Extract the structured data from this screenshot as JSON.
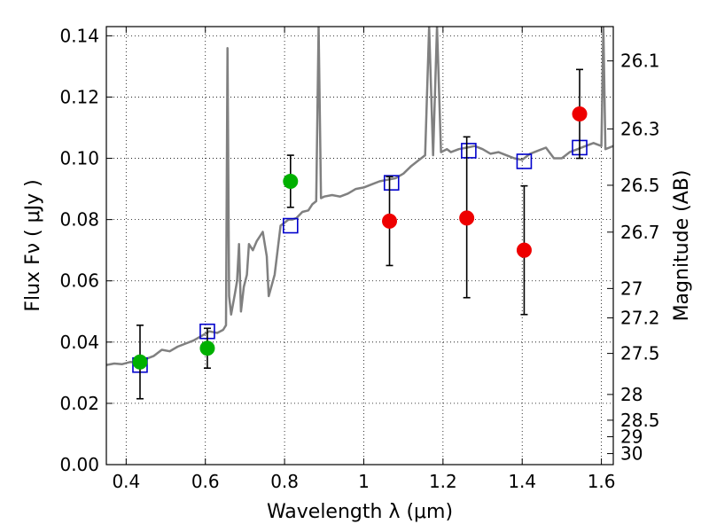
{
  "chart_data": {
    "type": "scatter",
    "xlabel": "Wavelength  λ (μm)",
    "ylabel": "Flux  Fν  ( μJy )",
    "ylabel_right": "Magnitude (AB)",
    "xlim": [
      0.35,
      1.63
    ],
    "ylim": [
      0.0,
      0.143
    ],
    "grid": true,
    "x_ticks": [
      0.4,
      0.6,
      0.8,
      1.0,
      1.2,
      1.4,
      1.6
    ],
    "x_tick_labels": [
      "0.4",
      "0.6",
      "0.8",
      "1",
      "1.2",
      "1.4",
      "1.6"
    ],
    "y_ticks": [
      0.0,
      0.02,
      0.04,
      0.06,
      0.08,
      0.1,
      0.12,
      0.14
    ],
    "y_tick_labels": [
      "0.00",
      "0.02",
      "0.04",
      "0.06",
      "0.08",
      "0.10",
      "0.12",
      "0.14"
    ],
    "right_ticks": [
      {
        "label": "26.1",
        "flux": 0.1318
      },
      {
        "label": "26.3",
        "flux": 0.1096
      },
      {
        "label": "26.5",
        "flux": 0.0912
      },
      {
        "label": "26.7",
        "flux": 0.0759
      },
      {
        "label": "27",
        "flux": 0.0575
      },
      {
        "label": "27.2",
        "flux": 0.0479
      },
      {
        "label": "27.5",
        "flux": 0.0363
      },
      {
        "label": "28",
        "flux": 0.0229
      },
      {
        "label": "28.5",
        "flux": 0.0145
      },
      {
        "label": "29",
        "flux": 0.0091
      },
      {
        "label": "30",
        "flux": 0.0036
      }
    ],
    "series": [
      {
        "kind": "line",
        "color": "#808080",
        "points": [
          [
            0.35,
            0.0325
          ],
          [
            0.37,
            0.033
          ],
          [
            0.39,
            0.0328
          ],
          [
            0.41,
            0.0335
          ],
          [
            0.43,
            0.0333
          ],
          [
            0.45,
            0.0345
          ],
          [
            0.47,
            0.0355
          ],
          [
            0.49,
            0.0375
          ],
          [
            0.51,
            0.037
          ],
          [
            0.53,
            0.0385
          ],
          [
            0.55,
            0.0395
          ],
          [
            0.57,
            0.0405
          ],
          [
            0.59,
            0.042
          ],
          [
            0.61,
            0.0435
          ],
          [
            0.63,
            0.043
          ],
          [
            0.645,
            0.044
          ],
          [
            0.652,
            0.0455
          ],
          [
            0.656,
            0.136
          ],
          [
            0.66,
            0.055
          ],
          [
            0.665,
            0.049
          ],
          [
            0.675,
            0.056
          ],
          [
            0.68,
            0.06
          ],
          [
            0.685,
            0.072
          ],
          [
            0.69,
            0.05
          ],
          [
            0.697,
            0.058
          ],
          [
            0.705,
            0.062
          ],
          [
            0.71,
            0.072
          ],
          [
            0.72,
            0.07
          ],
          [
            0.73,
            0.073
          ],
          [
            0.745,
            0.076
          ],
          [
            0.755,
            0.068
          ],
          [
            0.76,
            0.055
          ],
          [
            0.775,
            0.062
          ],
          [
            0.79,
            0.078
          ],
          [
            0.8,
            0.079
          ],
          [
            0.81,
            0.08
          ],
          [
            0.82,
            0.08
          ],
          [
            0.83,
            0.0805
          ],
          [
            0.845,
            0.0825
          ],
          [
            0.86,
            0.083
          ],
          [
            0.87,
            0.085
          ],
          [
            0.88,
            0.086
          ],
          [
            0.886,
            0.143
          ],
          [
            0.892,
            0.087
          ],
          [
            0.9,
            0.0875
          ],
          [
            0.92,
            0.088
          ],
          [
            0.94,
            0.0875
          ],
          [
            0.96,
            0.0885
          ],
          [
            0.98,
            0.09
          ],
          [
            1.0,
            0.0905
          ],
          [
            1.02,
            0.0915
          ],
          [
            1.04,
            0.0925
          ],
          [
            1.06,
            0.093
          ],
          [
            1.08,
            0.0935
          ],
          [
            1.1,
            0.095
          ],
          [
            1.12,
            0.0975
          ],
          [
            1.14,
            0.0995
          ],
          [
            1.155,
            0.101
          ],
          [
            1.165,
            0.143
          ],
          [
            1.175,
            0.101
          ],
          [
            1.185,
            0.143
          ],
          [
            1.195,
            0.102
          ],
          [
            1.21,
            0.103
          ],
          [
            1.22,
            0.102
          ],
          [
            1.24,
            0.103
          ],
          [
            1.26,
            0.1035
          ],
          [
            1.28,
            0.104
          ],
          [
            1.3,
            0.103
          ],
          [
            1.32,
            0.1015
          ],
          [
            1.34,
            0.102
          ],
          [
            1.36,
            0.101
          ],
          [
            1.38,
            0.1
          ],
          [
            1.4,
            0.0995
          ],
          [
            1.42,
            0.1015
          ],
          [
            1.44,
            0.1025
          ],
          [
            1.46,
            0.1035
          ],
          [
            1.48,
            0.1
          ],
          [
            1.5,
            0.1
          ],
          [
            1.52,
            0.102
          ],
          [
            1.54,
            0.103
          ],
          [
            1.56,
            0.104
          ],
          [
            1.58,
            0.105
          ],
          [
            1.6,
            0.104
          ],
          [
            1.605,
            0.143
          ],
          [
            1.61,
            0.103
          ],
          [
            1.62,
            0.1035
          ],
          [
            1.63,
            0.104
          ]
        ]
      },
      {
        "kind": "squares",
        "color": "#0000cc",
        "points": [
          {
            "x": 0.435,
            "y": 0.0325
          },
          {
            "x": 0.605,
            "y": 0.0435
          },
          {
            "x": 0.815,
            "y": 0.078
          },
          {
            "x": 1.07,
            "y": 0.092
          },
          {
            "x": 1.265,
            "y": 0.1025
          },
          {
            "x": 1.405,
            "y": 0.099
          },
          {
            "x": 1.545,
            "y": 0.1035
          }
        ]
      },
      {
        "kind": "points",
        "color": "#00b000",
        "points": [
          {
            "x": 0.435,
            "y": 0.0335,
            "err_low": 0.0215,
            "err_high": 0.0455
          },
          {
            "x": 0.605,
            "y": 0.038,
            "err_low": 0.0315,
            "err_high": 0.0445
          },
          {
            "x": 0.815,
            "y": 0.0925,
            "err_low": 0.084,
            "err_high": 0.101
          }
        ]
      },
      {
        "kind": "points",
        "color": "#ee0000",
        "points": [
          {
            "x": 1.065,
            "y": 0.0795,
            "err_low": 0.065,
            "err_high": 0.094
          },
          {
            "x": 1.26,
            "y": 0.0805,
            "err_low": 0.0545,
            "err_high": 0.107
          },
          {
            "x": 1.405,
            "y": 0.07,
            "err_low": 0.049,
            "err_high": 0.091
          },
          {
            "x": 1.545,
            "y": 0.1145,
            "err_low": 0.1,
            "err_high": 0.129
          }
        ]
      }
    ]
  }
}
